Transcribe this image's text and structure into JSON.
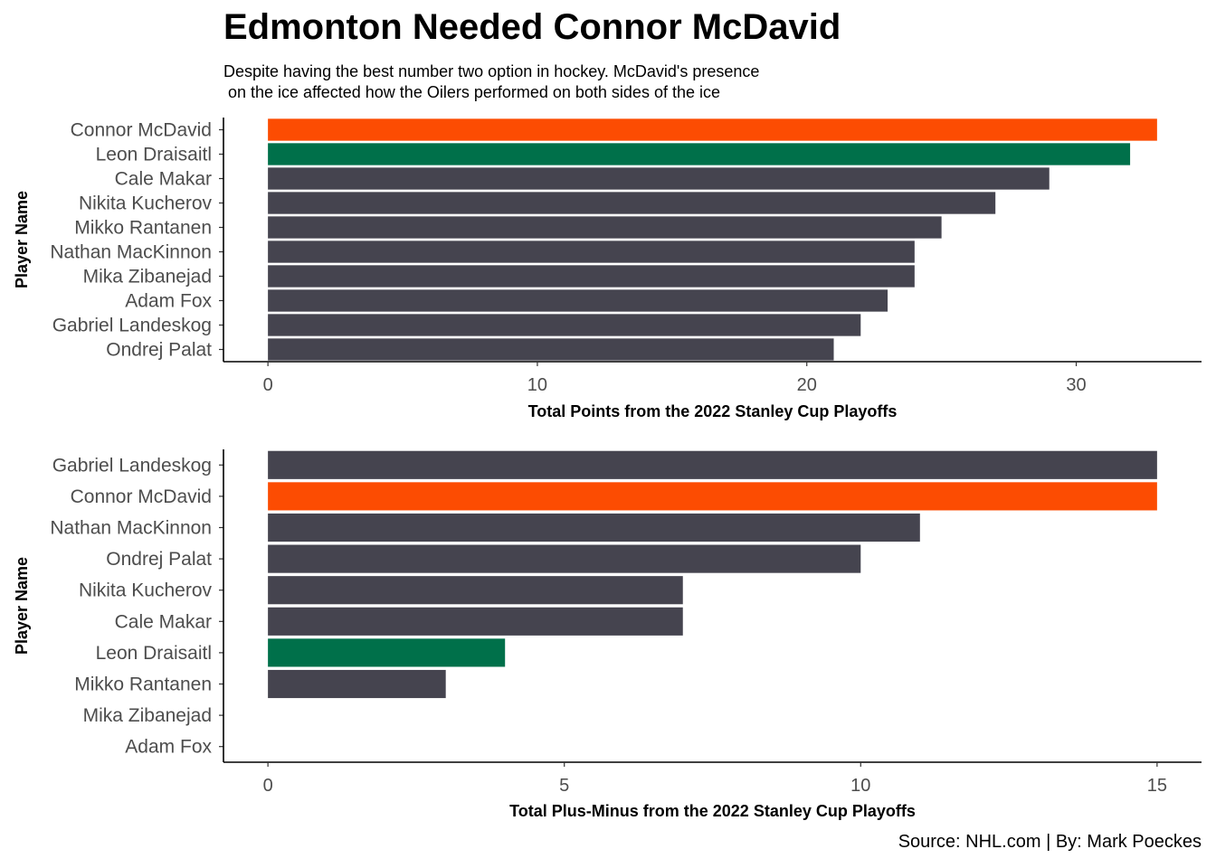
{
  "header": {
    "title": "Edmonton Needed Connor McDavid",
    "subtitle": "Despite having the best number two option in hockey. McDavid's presence\n on the ice affected how the Oilers performed on both sides of the ice"
  },
  "caption": "Source: NHL.com | By: Mark Poeckes",
  "colors": {
    "highlight_mcdavid": "#FC4C02",
    "highlight_draisaitl": "#00704A",
    "default_bar": "#45444F",
    "axis": "#000000",
    "text": "#4D4D4D"
  },
  "chart_data": [
    {
      "type": "bar",
      "orientation": "horizontal",
      "categories": [
        "Connor McDavid",
        "Leon Draisaitl",
        "Cale Makar",
        "Nikita Kucherov",
        "Mikko Rantanen",
        "Nathan MacKinnon",
        "Mika Zibanejad",
        "Adam Fox",
        "Gabriel Landeskog",
        "Ondrej Palat"
      ],
      "values": [
        33,
        32,
        29,
        27,
        25,
        24,
        24,
        23,
        22,
        21
      ],
      "bar_colors": [
        "#FC4C02",
        "#00704A",
        "#45444F",
        "#45444F",
        "#45444F",
        "#45444F",
        "#45444F",
        "#45444F",
        "#45444F",
        "#45444F"
      ],
      "xlabel": "Total Points from the 2022 Stanley Cup Playoffs",
      "ylabel": "Player Name",
      "xlim": [
        -1.65,
        34.65
      ],
      "xticks": [
        0,
        10,
        20,
        30
      ],
      "grid": false,
      "legend": "none"
    },
    {
      "type": "bar",
      "orientation": "horizontal",
      "categories": [
        "Gabriel Landeskog",
        "Connor McDavid",
        "Nathan MacKinnon",
        "Ondrej Palat",
        "Nikita Kucherov",
        "Cale Makar",
        "Leon Draisaitl",
        "Mikko Rantanen",
        "Mika Zibanejad",
        "Adam Fox"
      ],
      "values": [
        15,
        15,
        11,
        10,
        7,
        7,
        4,
        3,
        0,
        0
      ],
      "bar_colors": [
        "#45444F",
        "#FC4C02",
        "#45444F",
        "#45444F",
        "#45444F",
        "#45444F",
        "#00704A",
        "#45444F",
        "#45444F",
        "#45444F"
      ],
      "xlabel": "Total Plus-Minus from the 2022 Stanley Cup Playoffs",
      "ylabel": "Player Name",
      "xlim": [
        -0.75,
        15.75
      ],
      "xticks": [
        0,
        5,
        10,
        15
      ],
      "grid": false,
      "legend": "none"
    }
  ]
}
